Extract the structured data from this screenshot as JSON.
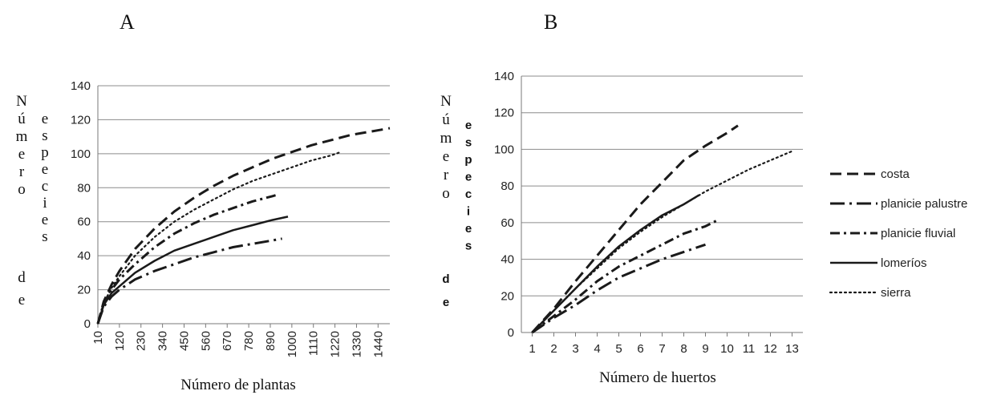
{
  "panels": [
    "A",
    "B"
  ],
  "legend": [
    "costa",
    "planicie palustre",
    "planicie fluvial",
    "lomeríos",
    "sierra"
  ],
  "chart_data": [
    {
      "type": "line",
      "panel": "A",
      "xlabel": "Número de plantas",
      "ylabel": "Número de especies",
      "ylabel_col1": "Número",
      "ylabel_col2": "especies",
      "ylabel_de": "de",
      "x_ticks": [
        "10",
        "120",
        "230",
        "340",
        "450",
        "560",
        "670",
        "780",
        "890",
        "1000",
        "1110",
        "1220",
        "1330",
        "1440"
      ],
      "y_ticks": [
        "0",
        "20",
        "40",
        "60",
        "80",
        "100",
        "120",
        "140"
      ],
      "xlim": [
        10,
        1500
      ],
      "ylim": [
        0,
        140
      ],
      "grid": "horizontal",
      "series": [
        {
          "name": "costa",
          "points": [
            [
              10,
              0
            ],
            [
              40,
              13
            ],
            [
              80,
              23
            ],
            [
              120,
              31
            ],
            [
              200,
              44
            ],
            [
              300,
              56
            ],
            [
              400,
              66
            ],
            [
              500,
              74
            ],
            [
              600,
              81
            ],
            [
              700,
              87
            ],
            [
              800,
              92
            ],
            [
              900,
              97
            ],
            [
              1000,
              101
            ],
            [
              1100,
              105
            ],
            [
              1200,
              108
            ],
            [
              1300,
              111
            ],
            [
              1400,
              113
            ],
            [
              1500,
              115
            ]
          ]
        },
        {
          "name": "planicie palustre",
          "points": [
            [
              10,
              0
            ],
            [
              40,
              10
            ],
            [
              80,
              16
            ],
            [
              120,
              20
            ],
            [
              200,
              26
            ],
            [
              300,
              31
            ],
            [
              400,
              35
            ],
            [
              500,
              39
            ],
            [
              600,
              42
            ],
            [
              700,
              45
            ],
            [
              800,
              47
            ],
            [
              900,
              49
            ],
            [
              950,
              50
            ]
          ]
        },
        {
          "name": "planicie fluvial",
          "points": [
            [
              10,
              0
            ],
            [
              40,
              12
            ],
            [
              80,
              20
            ],
            [
              120,
              26
            ],
            [
              200,
              35
            ],
            [
              300,
              45
            ],
            [
              400,
              53
            ],
            [
              500,
              59
            ],
            [
              600,
              64
            ],
            [
              700,
              68
            ],
            [
              800,
              72
            ],
            [
              900,
              75
            ],
            [
              930,
              76
            ]
          ]
        },
        {
          "name": "lomeríos",
          "points": [
            [
              10,
              0
            ],
            [
              40,
              11
            ],
            [
              80,
              18
            ],
            [
              120,
              22
            ],
            [
              200,
              30
            ],
            [
              300,
              37
            ],
            [
              400,
              43
            ],
            [
              500,
              47
            ],
            [
              600,
              51
            ],
            [
              700,
              55
            ],
            [
              800,
              58
            ],
            [
              900,
              61
            ],
            [
              980,
              63
            ]
          ]
        },
        {
          "name": "sierra",
          "points": [
            [
              10,
              0
            ],
            [
              40,
              12
            ],
            [
              80,
              21
            ],
            [
              120,
              28
            ],
            [
              200,
              40
            ],
            [
              300,
              51
            ],
            [
              400,
              60
            ],
            [
              500,
              67
            ],
            [
              600,
              73
            ],
            [
              700,
              79
            ],
            [
              800,
              84
            ],
            [
              900,
              88
            ],
            [
              1000,
              92
            ],
            [
              1100,
              96
            ],
            [
              1200,
              99
            ],
            [
              1250,
              101
            ]
          ]
        }
      ]
    },
    {
      "type": "line",
      "panel": "B",
      "xlabel": "Número de huertos",
      "ylabel": "Número de especies",
      "ylabel_col1": "Número",
      "ylabel_col2": "especies",
      "ylabel_de": "de",
      "x_ticks": [
        "1",
        "2",
        "3",
        "4",
        "5",
        "6",
        "7",
        "8",
        "9",
        "10",
        "11",
        "12",
        "13"
      ],
      "y_ticks": [
        "0",
        "20",
        "40",
        "60",
        "80",
        "100",
        "120",
        "140"
      ],
      "xlim": [
        0.5,
        13.5
      ],
      "ylim": [
        0,
        140
      ],
      "grid": "horizontal",
      "series": [
        {
          "name": "costa",
          "points": [
            [
              1,
              0
            ],
            [
              2,
              13
            ],
            [
              3,
              28
            ],
            [
              4,
              42
            ],
            [
              5,
              56
            ],
            [
              6,
              70
            ],
            [
              7,
              82
            ],
            [
              8,
              94
            ],
            [
              9,
              102
            ],
            [
              10,
              109
            ],
            [
              10.5,
              113
            ]
          ]
        },
        {
          "name": "planicie palustre",
          "points": [
            [
              1,
              0
            ],
            [
              2,
              8
            ],
            [
              3,
              15
            ],
            [
              4,
              23
            ],
            [
              5,
              30
            ],
            [
              6,
              35
            ],
            [
              7,
              40
            ],
            [
              8,
              44
            ],
            [
              9,
              48
            ]
          ]
        },
        {
          "name": "planicie fluvial",
          "points": [
            [
              1,
              0
            ],
            [
              2,
              9
            ],
            [
              3,
              18
            ],
            [
              4,
              28
            ],
            [
              5,
              36
            ],
            [
              6,
              42
            ],
            [
              7,
              48
            ],
            [
              8,
              54
            ],
            [
              9,
              58
            ],
            [
              9.5,
              61
            ]
          ]
        },
        {
          "name": "lomeríos",
          "points": [
            [
              1,
              0
            ],
            [
              2,
              12
            ],
            [
              3,
              24
            ],
            [
              4,
              36
            ],
            [
              5,
              47
            ],
            [
              6,
              56
            ],
            [
              7,
              64
            ],
            [
              8,
              70
            ],
            [
              8.7,
              75
            ]
          ]
        },
        {
          "name": "sierra",
          "points": [
            [
              1,
              0
            ],
            [
              2,
              12
            ],
            [
              3,
              24
            ],
            [
              4,
              35
            ],
            [
              5,
              46
            ],
            [
              6,
              55
            ],
            [
              7,
              63
            ],
            [
              8,
              70
            ],
            [
              9,
              77
            ],
            [
              10,
              83
            ],
            [
              11,
              89
            ],
            [
              12,
              94
            ],
            [
              13,
              99
            ]
          ]
        }
      ]
    }
  ]
}
